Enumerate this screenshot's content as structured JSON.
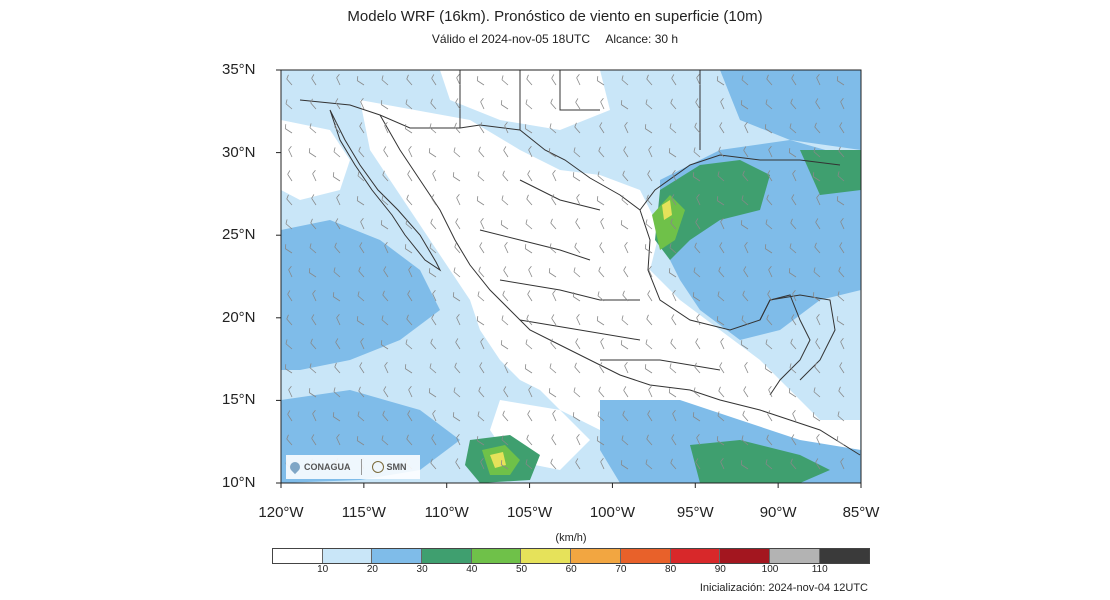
{
  "title": "Modelo WRF (16km). Pronóstico de viento en superficie (10m)",
  "valid": "Válido el 2024-nov-05 18UTC",
  "range": "Alcance: 30 h",
  "units": "(km/h)",
  "init": "Inicialización: 2024-nov-04 12UTC",
  "logos": {
    "conagua": "CONAGUA",
    "smn": "SMN"
  },
  "lat_labels": [
    "35°N",
    "30°N",
    "25°N",
    "20°N",
    "15°N",
    "10°N"
  ],
  "lon_labels": [
    "120°W",
    "115°W",
    "110°W",
    "105°W",
    "100°W",
    "95°W",
    "90°W",
    "85°W"
  ],
  "colorbar": {
    "labels": [
      "10",
      "20",
      "30",
      "40",
      "50",
      "60",
      "70",
      "80",
      "90",
      "100",
      "110"
    ],
    "colors": [
      "#ffffff",
      "#c9e6f8",
      "#7fbce9",
      "#3f9f6f",
      "#6fc149",
      "#e6e25a",
      "#f2a641",
      "#e8612a",
      "#d8282a",
      "#a3161f",
      "#b3b3b3",
      "#3a3a3a"
    ]
  },
  "map_colors": {
    "land_boundary": "#333333",
    "barb": "#888888"
  }
}
